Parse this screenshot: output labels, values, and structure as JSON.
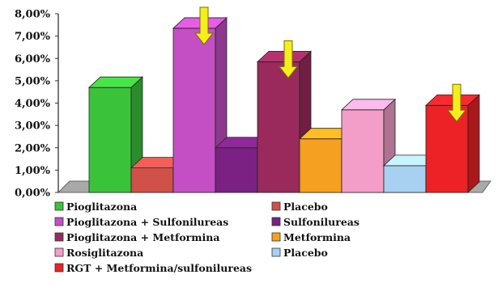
{
  "chart_data": {
    "type": "bar",
    "title": "",
    "xlabel": "",
    "ylabel": "",
    "ylim": [
      0,
      8
    ],
    "y_tick_labels": [
      "0,00%",
      "1,00%",
      "2,00%",
      "3,00%",
      "4,00%",
      "5,00%",
      "6,00%",
      "7,00%",
      "8,00%"
    ],
    "bars": [
      {
        "name": "Pioglitazona",
        "value": 4.7,
        "color": "#3bc23b"
      },
      {
        "name": "Placebo",
        "value": 1.1,
        "color": "#d0504a"
      },
      {
        "name": "Pioglitazona + Sulfonilureas",
        "value": 7.35,
        "color": "#c44fc4"
      },
      {
        "name": "Sulfonilureas",
        "value": 2.0,
        "color": "#7a2183"
      },
      {
        "name": "Pioglitazona + Metformina",
        "value": 5.85,
        "color": "#9b2a5c"
      },
      {
        "name": "Metformina",
        "value": 2.4,
        "color": "#f5a020"
      },
      {
        "name": "Rosiglitazona",
        "value": 3.7,
        "color": "#f39ec8"
      },
      {
        "name": "Placebo",
        "value": 1.2,
        "color": "#a8d0f0"
      },
      {
        "name": "RGT + Metformina/sulfonilureas",
        "value": 3.9,
        "color": "#ec2226"
      }
    ],
    "arrows_on": [
      2,
      4,
      8
    ],
    "arrow_color": "#f4ee1e",
    "grid": false,
    "legend_position": "bottom"
  }
}
